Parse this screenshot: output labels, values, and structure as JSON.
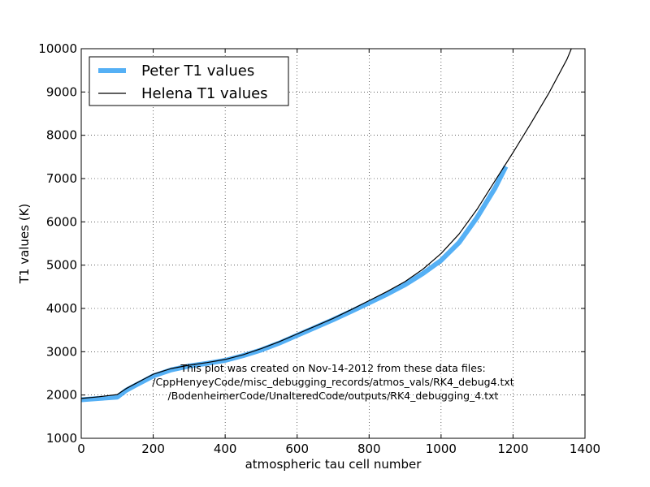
{
  "chart_data": {
    "type": "line",
    "xlabel": "atmospheric tau cell number",
    "ylabel": "T1 values (K)",
    "xlim": [
      0,
      1400
    ],
    "ylim": [
      1000,
      10000
    ],
    "xticks": [
      0,
      200,
      400,
      600,
      800,
      1000,
      1200,
      1400
    ],
    "yticks": [
      1000,
      2000,
      3000,
      4000,
      5000,
      6000,
      7000,
      8000,
      9000,
      10000
    ],
    "grid": true,
    "legend_position": "top-left",
    "series": [
      {
        "name": "Peter T1 values",
        "color": "#55b0f5",
        "style": "thick",
        "points": [
          [
            0,
            1890
          ],
          [
            50,
            1920
          ],
          [
            100,
            1950
          ],
          [
            125,
            2110
          ],
          [
            150,
            2220
          ],
          [
            175,
            2330
          ],
          [
            200,
            2440
          ],
          [
            250,
            2580
          ],
          [
            300,
            2670
          ],
          [
            350,
            2730
          ],
          [
            400,
            2800
          ],
          [
            450,
            2910
          ],
          [
            500,
            3040
          ],
          [
            550,
            3200
          ],
          [
            600,
            3380
          ],
          [
            650,
            3560
          ],
          [
            700,
            3740
          ],
          [
            750,
            3930
          ],
          [
            800,
            4130
          ],
          [
            850,
            4330
          ],
          [
            900,
            4550
          ],
          [
            950,
            4810
          ],
          [
            1000,
            5110
          ],
          [
            1050,
            5520
          ],
          [
            1100,
            6100
          ],
          [
            1150,
            6780
          ],
          [
            1180,
            7280
          ]
        ]
      },
      {
        "name": "Helena T1 values",
        "color": "#000000",
        "style": "thin",
        "points": [
          [
            0,
            1920
          ],
          [
            50,
            1960
          ],
          [
            100,
            2010
          ],
          [
            125,
            2150
          ],
          [
            150,
            2260
          ],
          [
            175,
            2370
          ],
          [
            200,
            2480
          ],
          [
            250,
            2610
          ],
          [
            300,
            2690
          ],
          [
            350,
            2750
          ],
          [
            400,
            2820
          ],
          [
            450,
            2930
          ],
          [
            500,
            3070
          ],
          [
            550,
            3230
          ],
          [
            600,
            3410
          ],
          [
            650,
            3590
          ],
          [
            700,
            3770
          ],
          [
            750,
            3970
          ],
          [
            800,
            4180
          ],
          [
            850,
            4390
          ],
          [
            900,
            4620
          ],
          [
            950,
            4910
          ],
          [
            1000,
            5270
          ],
          [
            1050,
            5720
          ],
          [
            1100,
            6290
          ],
          [
            1150,
            6950
          ],
          [
            1200,
            7600
          ],
          [
            1250,
            8280
          ],
          [
            1300,
            8980
          ],
          [
            1350,
            9760
          ],
          [
            1362,
            10000
          ]
        ]
      }
    ],
    "annotations": [
      "This plot was created on Nov-14-2012 from these data files:",
      "/CppHenyeyCode/misc_debugging_records/atmos_vals/RK4_debug4.txt",
      "/BodenheimerCode/UnalteredCode/outputs/RK4_debugging_4.txt"
    ]
  }
}
